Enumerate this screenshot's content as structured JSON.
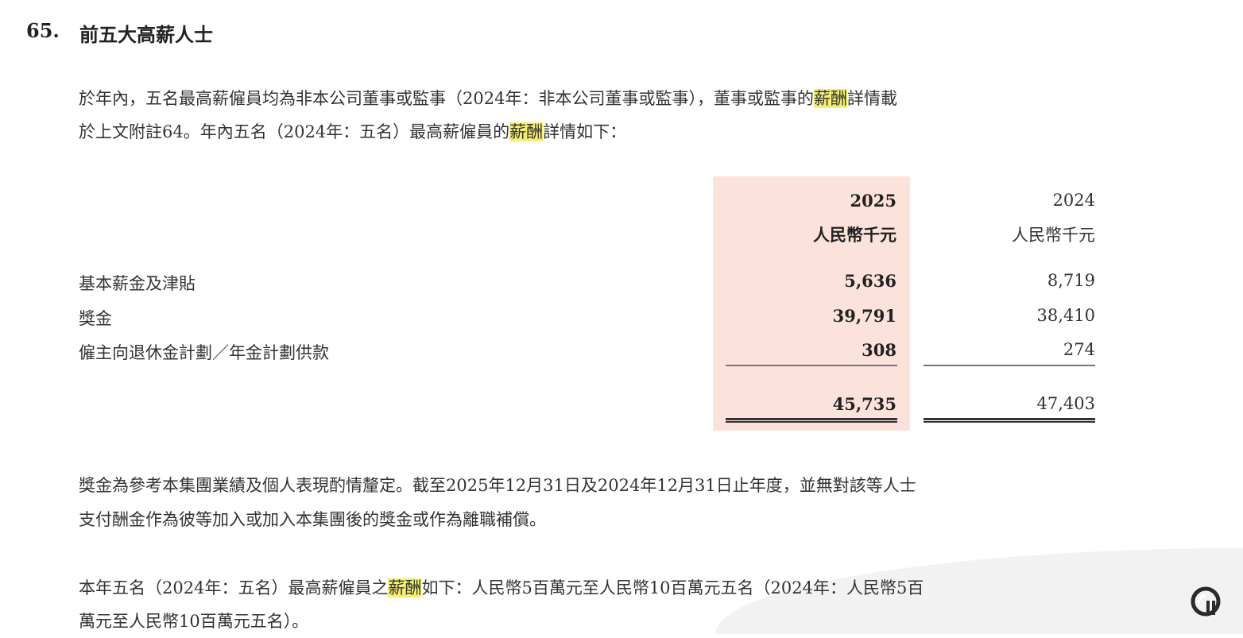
{
  "section": {
    "number": "65.",
    "title": "前五大高薪人士"
  },
  "intro": {
    "line1": [
      {
        "t": "於年內，五名最高薪僱員均為非本公司董事或監事（2024年：非本公司董事或監事），董事或監事的"
      },
      {
        "t": "薪酬",
        "hl": true
      },
      {
        "t": "詳情載"
      }
    ],
    "line2": [
      {
        "t": "於上文附註64。年內五名（2024年：五名）最高薪僱員的"
      },
      {
        "t": "薪酬",
        "hl": true
      },
      {
        "t": "詳情如下："
      }
    ]
  },
  "table": {
    "columns": [
      {
        "year": "2025",
        "unit": "人民幣千元"
      },
      {
        "year": "2024",
        "unit": "人民幣千元"
      }
    ],
    "rows": [
      {
        "label": "基本薪金及津貼",
        "v2025": "5,636",
        "v2024": "8,719"
      },
      {
        "label": "獎金",
        "v2025": "39,791",
        "v2024": "38,410"
      },
      {
        "label": "僱主向退休金計劃／年金計劃供款",
        "v2025": "308",
        "v2024": "274"
      }
    ],
    "total": {
      "v2025": "45,735",
      "v2024": "47,403"
    },
    "highlight_color": "#fbe2da"
  },
  "note1": {
    "line1": "獎金為參考本集團業績及個人表現酌情釐定。截至2025年12月31日及2024年12月31日止年度，並無對該等人士",
    "line2": "支付酬金作為彼等加入或加入本集團後的獎金或作為離職補償。"
  },
  "note2": {
    "line1": [
      {
        "t": "本年五名（2024年：五名）最高薪僱員之"
      },
      {
        "t": "薪酬",
        "hl": true
      },
      {
        "t": "如下：人民幣5百萬元至人民幣10百萬元五名（2024年：人民幣5百"
      }
    ],
    "line2": [
      {
        "t": "萬元至人民幣10百萬元五名）。"
      }
    ]
  },
  "text_highlight_color": "#f4ef6e",
  "logo": {
    "icon": "brand-logo-icon"
  }
}
